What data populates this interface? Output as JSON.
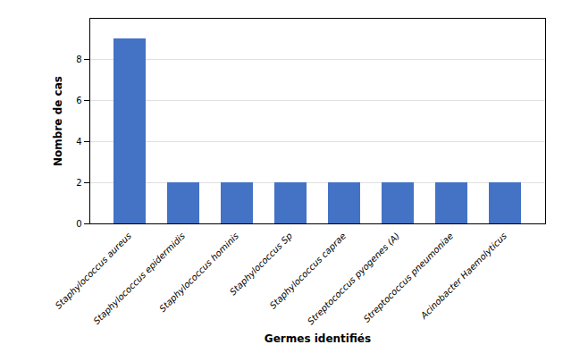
{
  "chart_data": {
    "type": "bar",
    "categories": [
      "Staphylococcus aureus",
      "Staphylococcus epidermidis",
      "Staphylococcus hominis",
      "Staphylococcus Sp",
      "Staphylococcus caprae",
      "Streptococcus pyogenes (A)",
      "Streptococcus pneumoniae",
      "Acinobacter Haemolyticus"
    ],
    "values": [
      9,
      2,
      2,
      2,
      2,
      2,
      2,
      2
    ],
    "color": "#4472C4",
    "xlabel": "Germes identifiés",
    "ylabel": "Nombre de cas",
    "ylim": [
      0,
      10
    ],
    "yticks": [
      0,
      2,
      4,
      6,
      8
    ],
    "grid": true
  }
}
